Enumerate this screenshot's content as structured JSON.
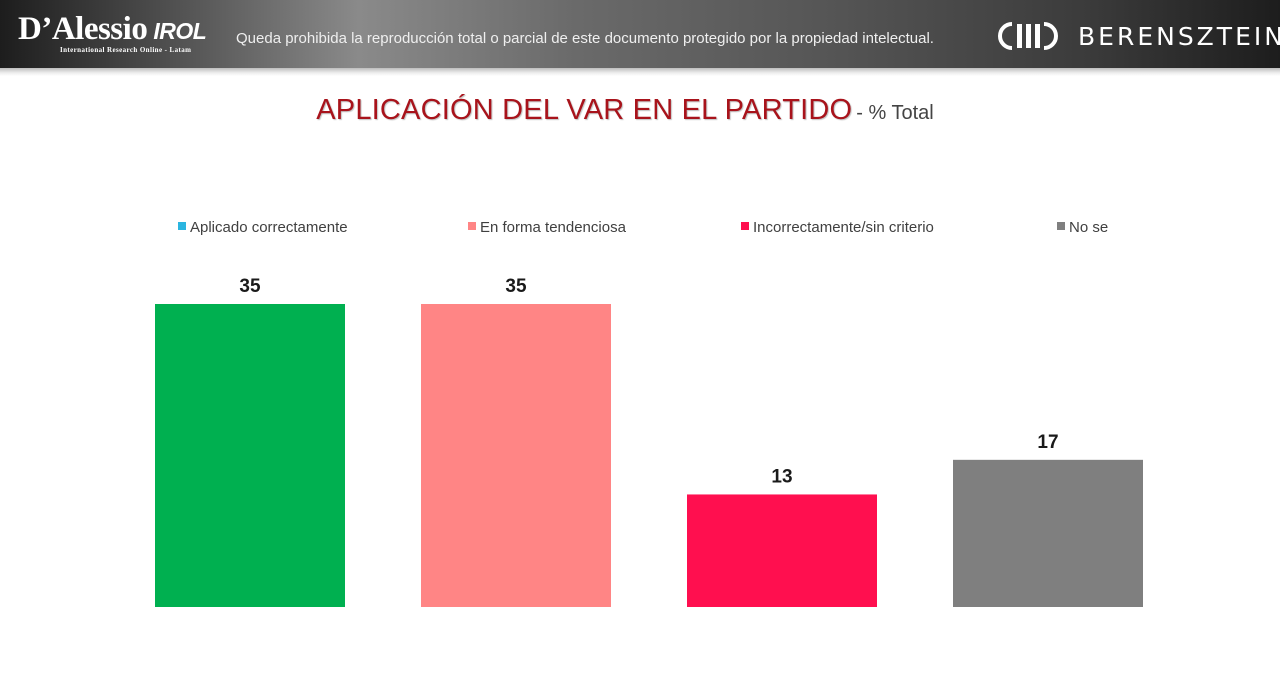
{
  "header": {
    "logo_left_main": "D’Alessio",
    "logo_left_irol": "IROL",
    "logo_left_sub": "International Research Online - Latam",
    "disclaimer": "Queda prohibida la reproducción total o parcial de este documento protegido por la propiedad intelectual.",
    "logo_right_text": "BERENSZTEIN"
  },
  "chart_data": {
    "type": "bar",
    "title": "APLICACIÓN DEL VAR EN EL PARTIDO",
    "subtitle": "- % Total",
    "legend_position": "top",
    "grid": false,
    "categories": [
      "Aplicado correctamente",
      "En forma tendenciosa",
      "Incorrectamente/sin criterio",
      "No se"
    ],
    "values": [
      35,
      35,
      13,
      17
    ],
    "colors": [
      "#00b050",
      "#ff8585",
      "#ff0f4f",
      "#7f7f7f"
    ],
    "legend_colors": [
      "#2bb5e0",
      "#ff8585",
      "#ff0f4f",
      "#7f7f7f"
    ],
    "ylim": [
      0,
      35
    ]
  }
}
